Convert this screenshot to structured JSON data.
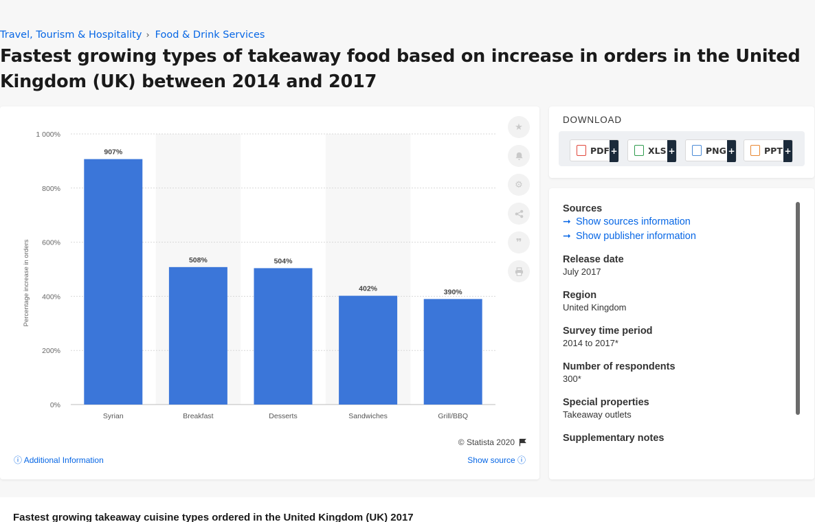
{
  "breadcrumb": {
    "item1": "Travel, Tourism & Hospitality",
    "item2": "Food & Drink Services",
    "sep": "›"
  },
  "title": "Fastest growing types of takeaway food based on increase in orders in the United Kingdom (UK) between 2014 and 2017",
  "chart_data": {
    "type": "bar",
    "categories": [
      "Syrian",
      "Breakfast",
      "Desserts",
      "Sandwiches",
      "Grill/BBQ"
    ],
    "values": [
      907,
      508,
      504,
      402,
      390
    ],
    "value_labels": [
      "907%",
      "508%",
      "504%",
      "402%",
      "390%"
    ],
    "ylabel": "Percentage increase in orders",
    "ylim": [
      0,
      1000
    ],
    "yticks": [
      0,
      200,
      400,
      600,
      800,
      1000
    ],
    "ytick_labels": [
      "0%",
      "200%",
      "400%",
      "600%",
      "800%",
      "1 000%"
    ],
    "bar_color": "#3b76d9",
    "grid": true,
    "alternating_band_color": "#f7f7f7"
  },
  "chart_footer": {
    "copyright": "© Statista 2020",
    "additional_info": "Additional Information",
    "show_source": "Show source"
  },
  "download": {
    "title": "DOWNLOAD",
    "buttons": [
      {
        "label": "PDF",
        "color": "#e0463a"
      },
      {
        "label": "XLS",
        "color": "#2e9b4d"
      },
      {
        "label": "PNG",
        "color": "#4a8ad6"
      },
      {
        "label": "PPT",
        "color": "#e8862f"
      }
    ],
    "plus": "+"
  },
  "info": {
    "sources_heading": "Sources",
    "show_sources": "Show sources information",
    "show_publisher": "Show publisher information",
    "release_date_heading": "Release date",
    "release_date": "July 2017",
    "region_heading": "Region",
    "region": "United Kingdom",
    "survey_period_heading": "Survey time period",
    "survey_period": "2014 to 2017*",
    "respondents_heading": "Number of respondents",
    "respondents": "300*",
    "special_heading": "Special properties",
    "special": "Takeaway outlets",
    "supplementary_heading": "Supplementary notes"
  },
  "bottom": {
    "title": "Fastest growing takeaway cuisine types ordered in the United Kingdom (UK) 2017"
  },
  "icons": [
    "star-icon",
    "bell-icon",
    "gear-icon",
    "share-icon",
    "quote-icon",
    "print-icon",
    "flag-icon",
    "info-icon",
    "arrow-right-icon"
  ]
}
